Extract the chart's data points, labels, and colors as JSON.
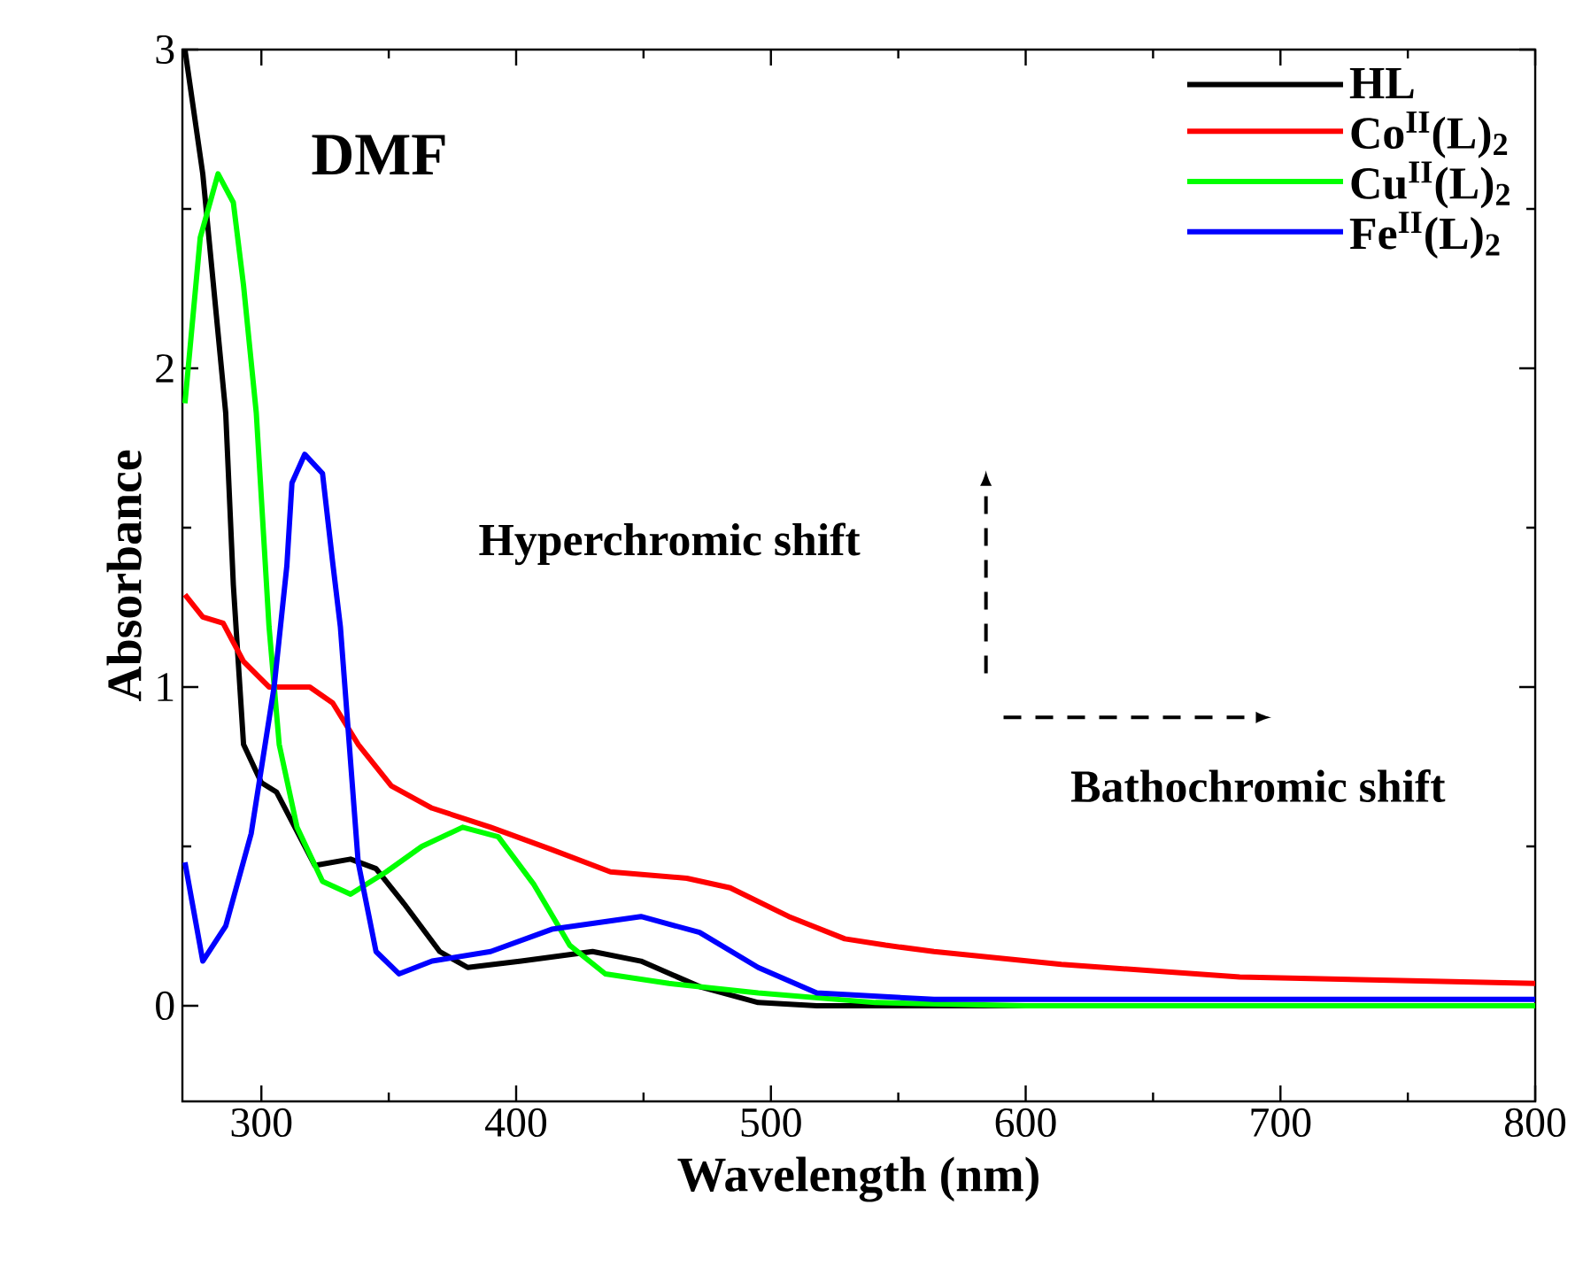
{
  "chart_data": {
    "type": "line",
    "xlabel": "Wavelength (nm)",
    "ylabel": "Absorbance",
    "xlim": [
      269,
      800
    ],
    "ylim": [
      -0.3,
      3
    ],
    "xticks": [
      300,
      400,
      500,
      600,
      700,
      800
    ],
    "yticks": [
      0,
      1,
      2,
      3
    ],
    "legend": "top right",
    "marker": "none",
    "line_style": "solid",
    "annotations": [
      "DMF",
      "Hyperchromic shift",
      "Bathochromic shift"
    ],
    "series": [
      {
        "name": "HL",
        "color": "#000000",
        "x": [
          270,
          277,
          286,
          289,
          293,
          300,
          306,
          321,
          335,
          345,
          356,
          370,
          381,
          402,
          430,
          449,
          472,
          495,
          518,
          600,
          700,
          800
        ],
        "values": [
          3.0,
          2.61,
          1.86,
          1.32,
          0.82,
          0.7,
          0.67,
          0.44,
          0.46,
          0.43,
          0.32,
          0.17,
          0.12,
          0.14,
          0.17,
          0.14,
          0.06,
          0.01,
          0.0,
          0.0,
          0.0,
          0.0
        ]
      },
      {
        "name": "Co$^{II}$(L)$_{2}$",
        "color": "#ff0000",
        "x": [
          270,
          277,
          285,
          293,
          303,
          319,
          328,
          338,
          351,
          367,
          390,
          414,
          437,
          467,
          484,
          507,
          529,
          545,
          564,
          614,
          684,
          800
        ],
        "values": [
          1.29,
          1.22,
          1.2,
          1.08,
          1.0,
          1.0,
          0.95,
          0.82,
          0.69,
          0.62,
          0.56,
          0.49,
          0.42,
          0.4,
          0.37,
          0.28,
          0.21,
          0.19,
          0.17,
          0.13,
          0.09,
          0.07
        ]
      },
      {
        "name": "Cu$^{II}$(L)$_{2}$",
        "color": "#00ff00",
        "x": [
          270,
          276,
          283,
          289,
          293,
          298,
          303,
          307,
          314,
          324,
          335,
          349,
          363,
          379,
          393,
          407,
          421,
          435,
          460,
          495,
          541,
          600,
          800
        ],
        "values": [
          1.89,
          2.41,
          2.61,
          2.52,
          2.26,
          1.86,
          1.19,
          0.82,
          0.56,
          0.39,
          0.35,
          0.42,
          0.5,
          0.56,
          0.53,
          0.38,
          0.19,
          0.1,
          0.07,
          0.04,
          0.01,
          0.0,
          0.0
        ]
      },
      {
        "name": "Fe$^{II}$(L)$_{2}$",
        "color": "#0000ff",
        "x": [
          270,
          277,
          286,
          296,
          305,
          310,
          312,
          317,
          324,
          328,
          331,
          338,
          345,
          354,
          367,
          390,
          414,
          449,
          472,
          495,
          518,
          564,
          800
        ],
        "values": [
          0.45,
          0.14,
          0.25,
          0.54,
          1.0,
          1.38,
          1.64,
          1.73,
          1.67,
          1.39,
          1.19,
          0.45,
          0.17,
          0.1,
          0.14,
          0.17,
          0.24,
          0.28,
          0.23,
          0.12,
          0.04,
          0.02,
          0.02
        ]
      }
    ]
  }
}
